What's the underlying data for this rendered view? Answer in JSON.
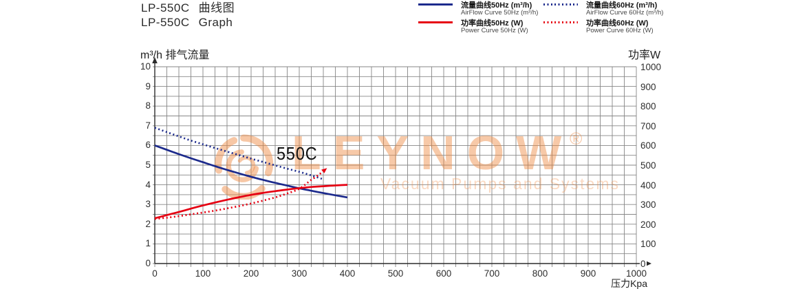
{
  "page": {
    "background": "#ffffff"
  },
  "title": {
    "model": "LP-550C",
    "suffix_cn": "曲线图",
    "suffix_en": "Graph"
  },
  "legend": {
    "position": "top-right",
    "items": [
      {
        "label_cn": "流量曲线50Hz (m³/h)",
        "label_en": "AirFlow Curve 50Hz (m³/h)",
        "color": "#1c2a8c",
        "line_style": "solid"
      },
      {
        "label_cn": "流量曲线60Hz (m³/h)",
        "label_en": "AirFlow Curve 60Hz (m³/h)",
        "color": "#1c2a8c",
        "line_style": "dotted"
      },
      {
        "label_cn": "功率曲线50Hz (W)",
        "label_en": "Power Curve 50Hz (W)",
        "color": "#e60012",
        "line_style": "solid"
      },
      {
        "label_cn": "功率曲线60Hz (W)",
        "label_en": "Power Curve 60Hz (W)",
        "color": "#e60012",
        "line_style": "dotted"
      }
    ]
  },
  "watermark": {
    "brand": "LEYNOW",
    "registered": "®",
    "tagline": "Vacuum Pumps and Systems",
    "color": "#ee8a42"
  },
  "annotation_label": "550C",
  "chart_data": {
    "type": "line",
    "grid": true,
    "legend_position": "top-right",
    "x_axis": {
      "label": "压力Kpa",
      "min": 0,
      "max": 1000,
      "major_step": 100,
      "minor_step": 25,
      "tick_labels": [
        "0",
        "100",
        "200",
        "300",
        "400",
        "500",
        "600",
        "700",
        "800",
        "900",
        "1000"
      ]
    },
    "y_left_axis": {
      "label": "m³/h 排气流量",
      "min": 0,
      "max": 10,
      "major_step": 1,
      "minor_step": 0.5,
      "tick_labels": [
        "0",
        "1",
        "2",
        "3",
        "4",
        "5",
        "6",
        "7",
        "8",
        "9",
        "10"
      ]
    },
    "y_right_axis": {
      "label": "功率W",
      "min": 0,
      "max": 1000,
      "major_step": 100,
      "tick_labels": [
        "0",
        "100",
        "200",
        "300",
        "400",
        "500",
        "600",
        "700",
        "800",
        "900",
        "1000"
      ]
    },
    "series": [
      {
        "name": "AirFlow Curve 50Hz (m³/h)",
        "name_cn": "流量曲线50Hz",
        "axis": "left",
        "color": "#1c2a8c",
        "style": "solid",
        "arrow_end": false,
        "points": [
          [
            0,
            6.0
          ],
          [
            25,
            5.78
          ],
          [
            50,
            5.56
          ],
          [
            75,
            5.35
          ],
          [
            100,
            5.15
          ],
          [
            125,
            4.95
          ],
          [
            150,
            4.76
          ],
          [
            175,
            4.58
          ],
          [
            200,
            4.41
          ],
          [
            225,
            4.25
          ],
          [
            250,
            4.1
          ],
          [
            275,
            3.96
          ],
          [
            300,
            3.82
          ],
          [
            325,
            3.7
          ],
          [
            350,
            3.58
          ],
          [
            375,
            3.47
          ],
          [
            400,
            3.36
          ]
        ]
      },
      {
        "name": "AirFlow Curve 60Hz (m³/h)",
        "name_cn": "流量曲线60Hz",
        "axis": "left",
        "color": "#1c2a8c",
        "style": "dotted",
        "arrow_end": false,
        "points": [
          [
            0,
            6.9
          ],
          [
            25,
            6.68
          ],
          [
            50,
            6.46
          ],
          [
            75,
            6.25
          ],
          [
            100,
            6.06
          ],
          [
            125,
            5.87
          ],
          [
            150,
            5.69
          ],
          [
            175,
            5.51
          ],
          [
            200,
            5.33
          ],
          [
            225,
            5.16
          ],
          [
            250,
            4.99
          ],
          [
            275,
            4.82
          ],
          [
            300,
            4.66
          ],
          [
            325,
            4.48
          ],
          [
            350,
            4.28
          ]
        ]
      },
      {
        "name": "Power Curve 50Hz (W)",
        "name_cn": "功率曲线50Hz",
        "axis": "right",
        "color": "#e60012",
        "style": "solid",
        "arrow_end": false,
        "points": [
          [
            0,
            230
          ],
          [
            25,
            246
          ],
          [
            50,
            262
          ],
          [
            75,
            279
          ],
          [
            100,
            295
          ],
          [
            125,
            310
          ],
          [
            150,
            324
          ],
          [
            175,
            337
          ],
          [
            200,
            349
          ],
          [
            225,
            359
          ],
          [
            250,
            368
          ],
          [
            275,
            376
          ],
          [
            300,
            383
          ],
          [
            325,
            389
          ],
          [
            350,
            393
          ],
          [
            375,
            397
          ],
          [
            400,
            400
          ]
        ]
      },
      {
        "name": "Power Curve 60Hz (W)",
        "name_cn": "功率曲线60Hz",
        "axis": "right",
        "color": "#e60012",
        "style": "dotted",
        "arrow_end": true,
        "points": [
          [
            0,
            227
          ],
          [
            25,
            233
          ],
          [
            50,
            241
          ],
          [
            75,
            250
          ],
          [
            100,
            259
          ],
          [
            125,
            269
          ],
          [
            150,
            280
          ],
          [
            175,
            292
          ],
          [
            200,
            305
          ],
          [
            225,
            320
          ],
          [
            250,
            336
          ],
          [
            275,
            356
          ],
          [
            300,
            380
          ],
          [
            325,
            425
          ],
          [
            340,
            450
          ],
          [
            350,
            470
          ]
        ]
      }
    ]
  }
}
